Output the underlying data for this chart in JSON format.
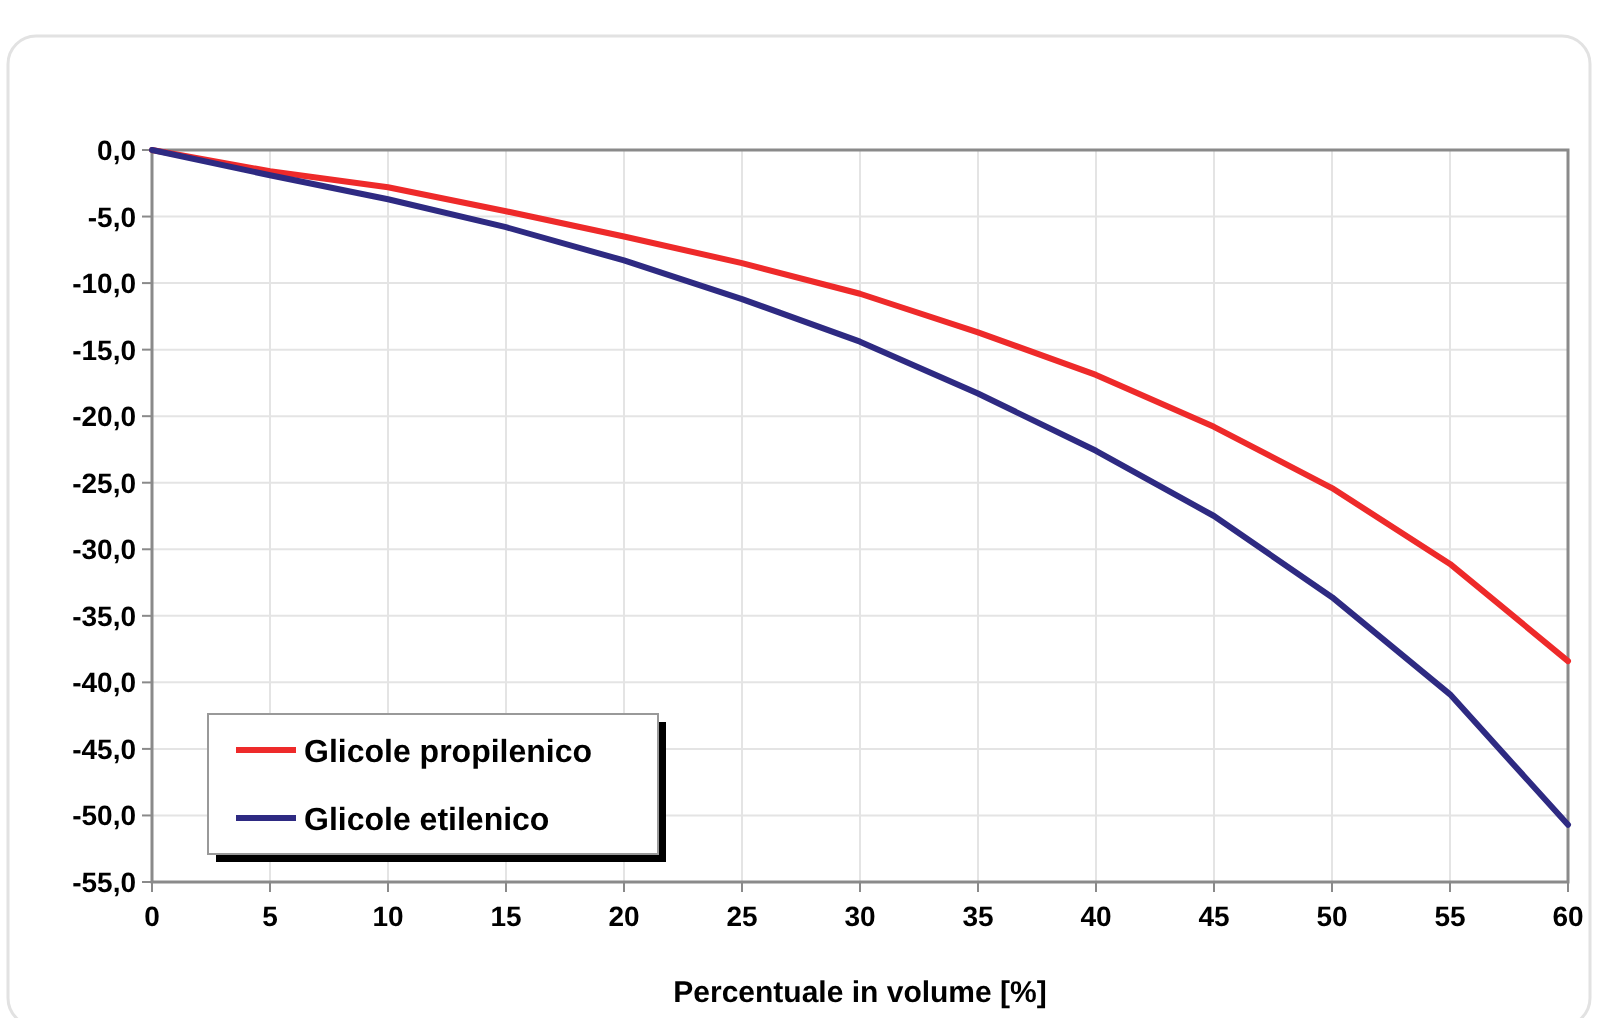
{
  "chart_data": {
    "type": "line",
    "xlabel": "Percentuale in volume  [%]",
    "x": [
      0,
      5,
      10,
      15,
      20,
      25,
      30,
      35,
      40,
      45,
      50,
      55,
      60
    ],
    "series": [
      {
        "name": "Glicole propilenico",
        "color": "#ee2a2a",
        "values": [
          0,
          -1.6,
          -2.8,
          -4.6,
          -6.5,
          -8.5,
          -10.8,
          -13.7,
          -16.9,
          -20.8,
          -25.4,
          -31.1,
          -38.4
        ]
      },
      {
        "name": "Glicole etilenico",
        "color": "#2e2a82",
        "values": [
          0,
          -1.9,
          -3.7,
          -5.8,
          -8.3,
          -11.2,
          -14.4,
          -18.3,
          -22.6,
          -27.5,
          -33.6,
          -40.9,
          -50.7
        ]
      }
    ],
    "xlim": [
      0,
      60
    ],
    "xticks": [
      0,
      5,
      10,
      15,
      20,
      25,
      30,
      35,
      40,
      45,
      50,
      55,
      60
    ],
    "ylim": [
      -55,
      0
    ],
    "yticks": [
      {
        "value": 0,
        "label": "0,0"
      },
      {
        "value": -5,
        "label": "-5,0"
      },
      {
        "value": -10,
        "label": "-10,0"
      },
      {
        "value": -15,
        "label": "-15,0"
      },
      {
        "value": -20,
        "label": "-20,0"
      },
      {
        "value": -25,
        "label": "-25,0"
      },
      {
        "value": -30,
        "label": "-30,0"
      },
      {
        "value": -35,
        "label": "-35,0"
      },
      {
        "value": -40,
        "label": "-40,0"
      },
      {
        "value": -45,
        "label": "-45,0"
      },
      {
        "value": -50,
        "label": "-50,0"
      },
      {
        "value": -55,
        "label": "-55,0"
      }
    ],
    "grid": true,
    "legend": "bottom left",
    "marker": "none",
    "line_style": "solid"
  }
}
